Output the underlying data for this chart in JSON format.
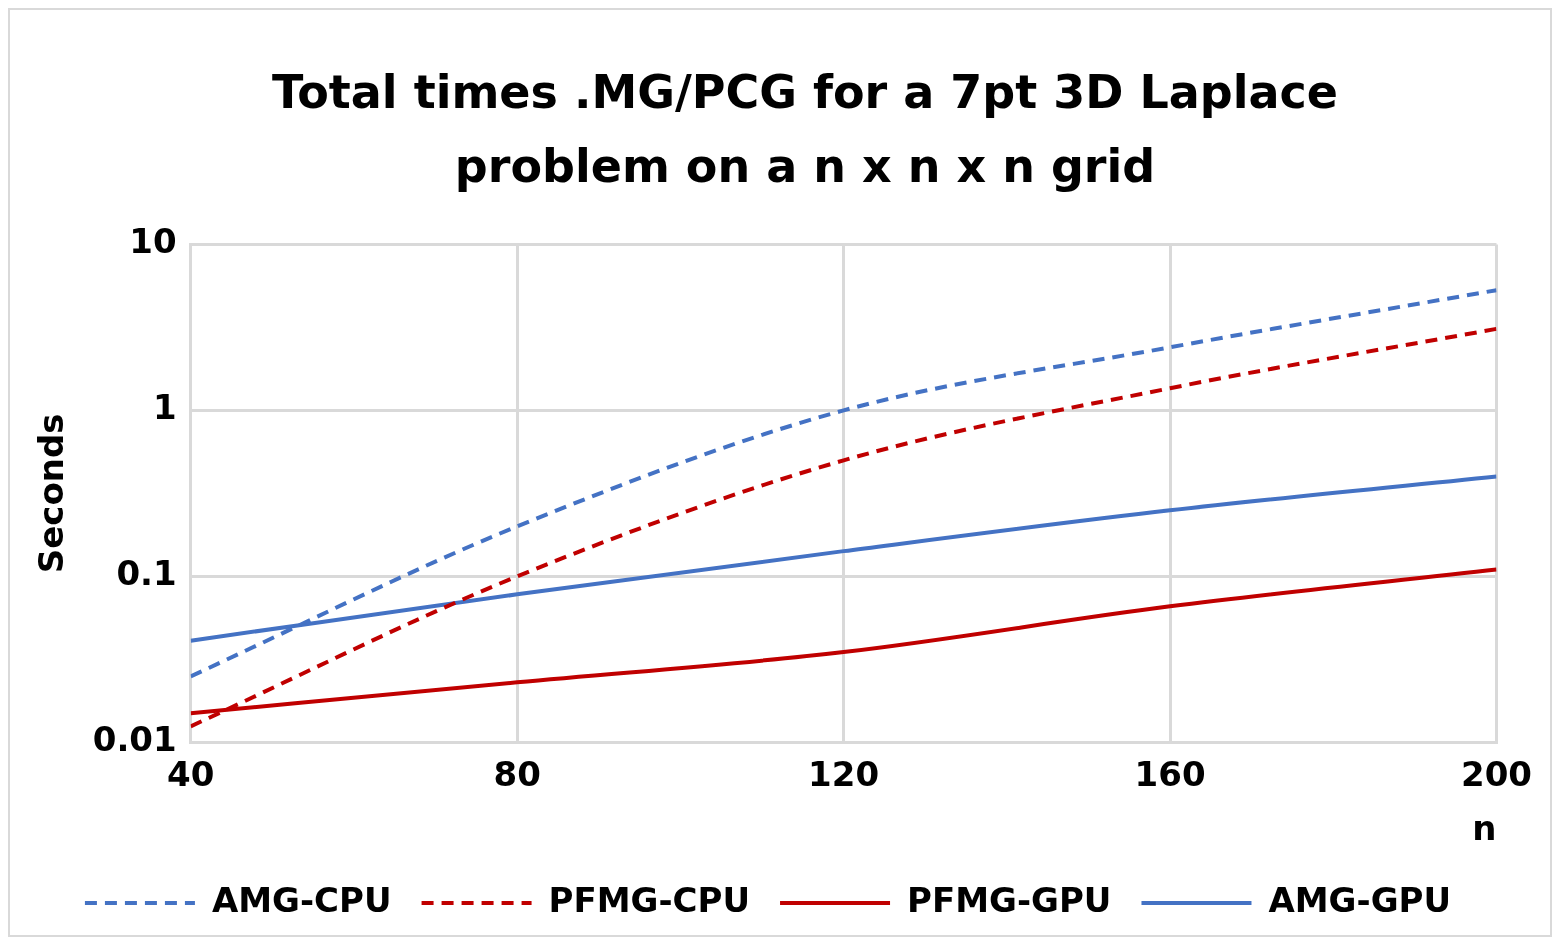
{
  "chart_data": {
    "type": "line",
    "title": "Total times .MG/PCG for a 7pt 3D Laplace problem on a n x n x n grid",
    "xlabel": "n",
    "ylabel": "Seconds",
    "x": [
      40,
      80,
      120,
      160,
      200
    ],
    "series": [
      {
        "name": "AMG-CPU",
        "color": "#4472c4",
        "line_style": "dashed",
        "values": [
          0.025,
          0.2,
          1.0,
          2.4,
          5.3
        ]
      },
      {
        "name": "PFMG-CPU",
        "color": "#c00000",
        "line_style": "dashed",
        "values": [
          0.0125,
          0.1,
          0.5,
          1.36,
          3.1
        ]
      },
      {
        "name": "PFMG-GPU",
        "color": "#c00000",
        "line_style": "solid",
        "values": [
          0.015,
          0.023,
          0.035,
          0.066,
          0.11
        ]
      },
      {
        "name": "AMG-GPU",
        "color": "#4472c4",
        "line_style": "solid",
        "values": [
          0.041,
          0.078,
          0.142,
          0.25,
          0.4
        ]
      }
    ],
    "xlim": [
      40,
      200
    ],
    "xticks": [
      40,
      80,
      120,
      160,
      200
    ],
    "ylim": [
      0.01,
      10
    ],
    "yticks": [
      {
        "value": 0.01,
        "label": "0.01"
      },
      {
        "value": 0.1,
        "label": "0.1"
      },
      {
        "value": 1,
        "label": "1"
      },
      {
        "value": 10,
        "label": "10"
      }
    ],
    "log": "y",
    "grid": true,
    "legend": "bottom",
    "marker": "none"
  }
}
